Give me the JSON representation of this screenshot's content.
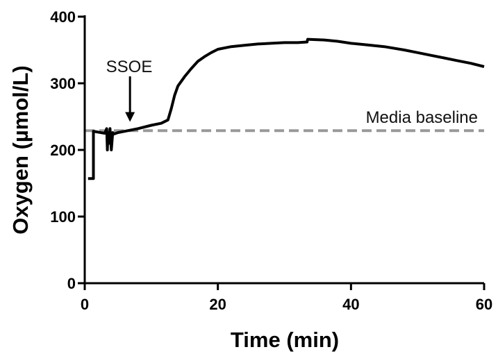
{
  "chart_data": {
    "type": "line",
    "xlabel": "Time (min)",
    "ylabel": "Oxygen (µmol/L)",
    "xlim": [
      0,
      60
    ],
    "ylim": [
      0,
      400
    ],
    "x_ticks": [
      "0",
      "20",
      "40",
      "60"
    ],
    "y_ticks": [
      "0",
      "100",
      "200",
      "300",
      "400"
    ],
    "grid": false,
    "series": [
      {
        "style": "solid",
        "color": "#000000",
        "x": [
          0.5,
          1.3,
          1.3,
          3.0,
          3.3,
          3.4,
          3.5,
          3.7,
          3.8,
          4.0,
          4.2,
          4.4,
          5.0,
          6.5,
          8.0,
          10.0,
          11.5,
          12.5,
          13.0,
          13.5,
          14.0,
          15.0,
          16.0,
          17.0,
          18.0,
          19.0,
          20.0,
          22.0,
          24.0,
          26.0,
          28.0,
          30.0,
          32.0,
          33.4,
          33.5,
          36.0,
          38.0,
          40.0,
          42.0,
          45.0,
          48.0,
          50.0,
          52.0,
          54.0,
          56.0,
          58.0,
          60.0
        ],
        "y": [
          157,
          157,
          228,
          225,
          232,
          200,
          226,
          210,
          232,
          200,
          226,
          224,
          226,
          229,
          232,
          237,
          240,
          245,
          262,
          282,
          296,
          310,
          322,
          333,
          340,
          346,
          351,
          355,
          357,
          359,
          360,
          361,
          361,
          362,
          366,
          365,
          363,
          360,
          358,
          355,
          350,
          346,
          342,
          338,
          334,
          330,
          325
        ]
      },
      {
        "name": "Media baseline",
        "style": "dashed",
        "color": "#999999",
        "x": [
          0,
          60
        ],
        "y": [
          229,
          229
        ]
      }
    ],
    "annotations": [
      {
        "text": "SSOE",
        "arrow_x": 6.8,
        "arrow_to_y": 236
      },
      {
        "text": "Media baseline"
      }
    ]
  }
}
